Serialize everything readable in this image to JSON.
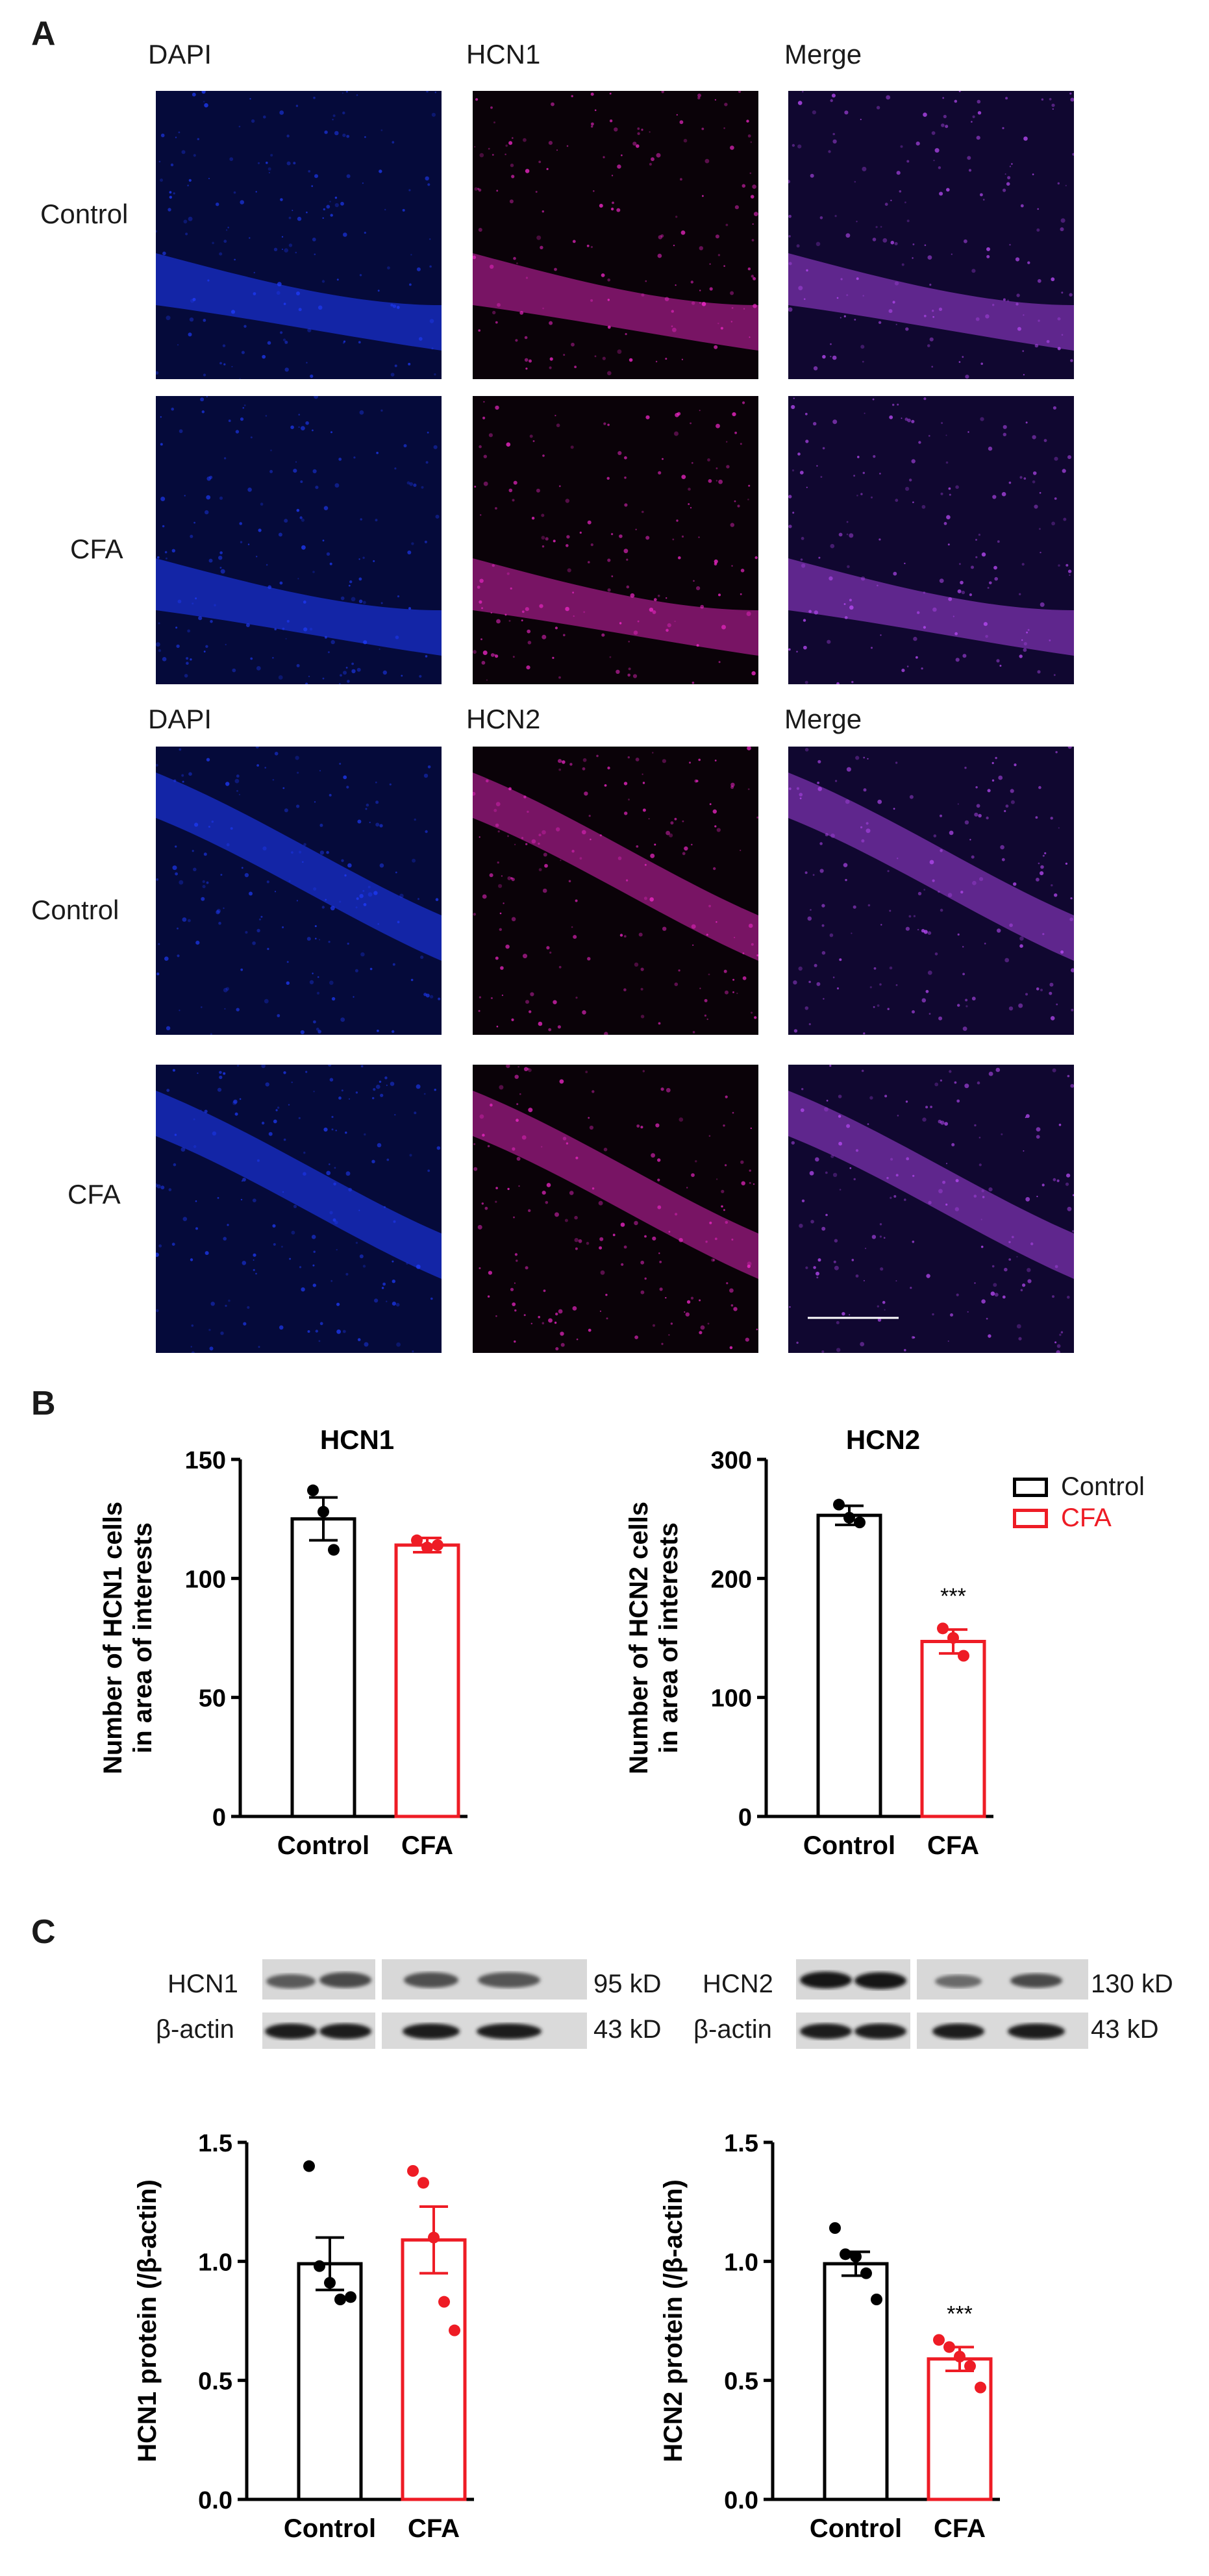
{
  "panels": {
    "A": {
      "letter": "A",
      "hcn1_block": {
        "columns": [
          "DAPI",
          "HCN1",
          "Merge"
        ],
        "rows": [
          "Control",
          "CFA"
        ]
      },
      "hcn2_block": {
        "columns": [
          "DAPI",
          "HCN2",
          "Merge"
        ],
        "rows": [
          "Control",
          "CFA"
        ]
      },
      "colors": {
        "dapi": "#1f3cff",
        "hcn": "#ff2ad4",
        "merge": "#c04dff"
      }
    },
    "B": {
      "letter": "B",
      "legend": [
        {
          "label": "Control",
          "color": "#000000"
        },
        {
          "label": "CFA",
          "color": "#ee1c25"
        }
      ]
    },
    "C": {
      "letter": "C",
      "blots": [
        {
          "rows": [
            {
              "protein": "HCN1",
              "size": "95 kD"
            },
            {
              "protein": "β-actin",
              "size": "43 kD"
            }
          ]
        },
        {
          "rows": [
            {
              "protein": "HCN2",
              "size": "130 kD"
            },
            {
              "protein": "β-actin",
              "size": "43 kD"
            }
          ]
        }
      ]
    }
  },
  "chart_data": [
    {
      "type": "bar",
      "title": "HCN1",
      "ylabel": "Number of HCN1 cells in area of interests",
      "ylabel_lines": [
        "Number of HCN1 cells",
        "in area of interests"
      ],
      "categories": [
        "Control",
        "CFA"
      ],
      "values": [
        125,
        114
      ],
      "errors": [
        9,
        3
      ],
      "points": [
        [
          137,
          128,
          112
        ],
        [
          116,
          113,
          114
        ]
      ],
      "ylim": [
        0,
        150
      ],
      "yticks": [
        0,
        50,
        100,
        150
      ],
      "significance": [
        "",
        ""
      ]
    },
    {
      "type": "bar",
      "title": "HCN2",
      "ylabel": "Number of HCN2 cells in area of interests",
      "ylabel_lines": [
        "Number of HCN2 cells",
        "in area of interests"
      ],
      "categories": [
        "Control",
        "CFA"
      ],
      "values": [
        253,
        147
      ],
      "errors": [
        8,
        10
      ],
      "points": [
        [
          262,
          251,
          247
        ],
        [
          158,
          150,
          135
        ]
      ],
      "ylim": [
        0,
        300
      ],
      "yticks": [
        0,
        100,
        200,
        300
      ],
      "significance": [
        "",
        "***"
      ]
    },
    {
      "type": "bar",
      "title": "",
      "ylabel": "HCN1 protein (/β-actin)",
      "ylabel_lines": [
        "HCN1 protein (/β-actin)"
      ],
      "categories": [
        "Control",
        "CFA"
      ],
      "values": [
        0.99,
        1.09
      ],
      "errors": [
        0.11,
        0.14
      ],
      "points": [
        [
          1.4,
          0.98,
          0.91,
          0.84,
          0.85
        ],
        [
          1.38,
          1.33,
          1.1,
          0.83,
          0.71
        ]
      ],
      "ylim": [
        0,
        1.5
      ],
      "yticks": [
        0.0,
        0.5,
        1.0,
        1.5
      ],
      "significance": [
        "",
        ""
      ]
    },
    {
      "type": "bar",
      "title": "",
      "ylabel": "HCN2 protein  (/β-actin)",
      "ylabel_lines": [
        "HCN2 protein  (/β-actin)"
      ],
      "categories": [
        "Control",
        "CFA"
      ],
      "values": [
        0.99,
        0.59
      ],
      "errors": [
        0.05,
        0.05
      ],
      "points": [
        [
          1.14,
          1.03,
          1.02,
          0.95,
          0.84
        ],
        [
          0.67,
          0.64,
          0.6,
          0.56,
          0.47
        ]
      ],
      "ylim": [
        0,
        1.5
      ],
      "yticks": [
        0.0,
        0.5,
        1.0,
        1.5
      ],
      "significance": [
        "",
        "***"
      ]
    }
  ]
}
